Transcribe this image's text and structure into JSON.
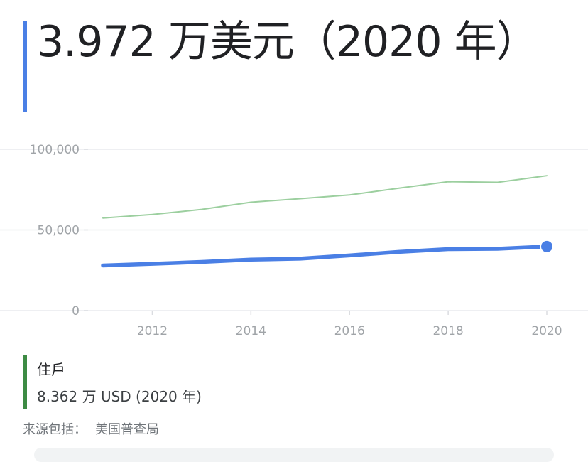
{
  "headline": {
    "text": "3.972 万美元（2020 年）"
  },
  "legend": {
    "name": "住戶",
    "value": "8.362 万 USD (2020 年)"
  },
  "source": {
    "label": "来源包括：",
    "name": "美国普查局"
  },
  "colors": {
    "primary": "#4a7fe5",
    "secondary": "#9ccf9f",
    "legend_bar": "#3d8b44",
    "grid": "#e8eaed",
    "tick": "#a0a4a8"
  },
  "chart_data": {
    "type": "line",
    "x": [
      2011,
      2012,
      2013,
      2014,
      2015,
      2016,
      2017,
      2018,
      2019,
      2020
    ],
    "xticks": [
      "2012",
      "2014",
      "2016",
      "2018",
      "2020"
    ],
    "yticks": [
      "100,000",
      "50,000",
      "0"
    ],
    "ylim": [
      0,
      100000
    ],
    "series": [
      {
        "values": [
          28000,
          29000,
          30200,
          31600,
          32200,
          34200,
          36400,
          38100,
          38300,
          39720
        ]
      },
      {
        "name": "住戶",
        "values": [
          57400,
          59600,
          62700,
          67200,
          69400,
          71700,
          75900,
          79900,
          79500,
          83620
        ]
      }
    ],
    "highlight_last_of_series": 0
  }
}
